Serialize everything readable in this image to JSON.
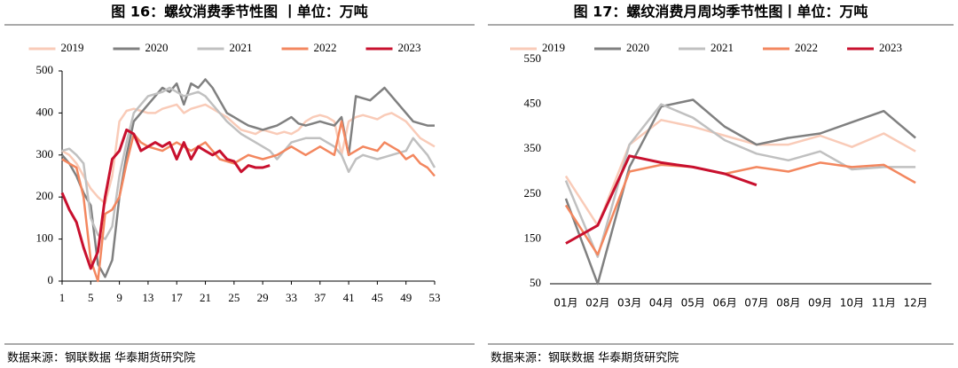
{
  "chart_data": [
    {
      "type": "line",
      "title": "图 16：螺纹消费季节性图 丨单位：万吨",
      "note": "数据来源：钢联数据 华泰期货研究院",
      "x": [
        1,
        2,
        3,
        4,
        5,
        6,
        7,
        8,
        9,
        10,
        11,
        12,
        13,
        14,
        15,
        16,
        17,
        18,
        19,
        20,
        21,
        22,
        23,
        24,
        25,
        26,
        27,
        28,
        29,
        30,
        31,
        32,
        33,
        34,
        35,
        36,
        37,
        38,
        39,
        40,
        41,
        42,
        43,
        44,
        45,
        46,
        47,
        48,
        49,
        50,
        51,
        52,
        53
      ],
      "xlim": [
        1,
        53
      ],
      "xticks": [
        1,
        5,
        9,
        13,
        17,
        21,
        25,
        29,
        33,
        37,
        41,
        45,
        49,
        53
      ],
      "ylim": [
        0,
        500
      ],
      "yticks": [
        0,
        100,
        200,
        300,
        400,
        500
      ],
      "series": [
        {
          "name": "2019",
          "color": "#f9cbb8",
          "values": [
            310,
            300,
            280,
            250,
            220,
            200,
            185,
            250,
            380,
            405,
            410,
            405,
            400,
            400,
            410,
            415,
            420,
            400,
            410,
            415,
            420,
            410,
            400,
            390,
            375,
            360,
            355,
            350,
            360,
            355,
            350,
            355,
            350,
            360,
            380,
            390,
            395,
            390,
            380,
            300,
            380,
            390,
            395,
            390,
            385,
            395,
            400,
            390,
            380,
            360,
            340,
            330,
            320
          ]
        },
        {
          "name": "2020",
          "color": "#808080",
          "values": [
            300,
            280,
            250,
            210,
            180,
            40,
            10,
            50,
            200,
            300,
            380,
            400,
            420,
            440,
            460,
            450,
            470,
            420,
            470,
            460,
            480,
            460,
            430,
            400,
            390,
            380,
            370,
            365,
            360,
            365,
            370,
            380,
            390,
            375,
            370,
            375,
            380,
            375,
            370,
            390,
            300,
            440,
            435,
            430,
            445,
            460,
            440,
            420,
            400,
            380,
            375,
            370,
            370
          ]
        },
        {
          "name": "2021",
          "color": "#c0c0c0",
          "values": [
            310,
            315,
            300,
            280,
            150,
            110,
            100,
            130,
            250,
            330,
            400,
            420,
            440,
            445,
            450,
            460,
            450,
            440,
            445,
            450,
            440,
            420,
            400,
            380,
            365,
            350,
            340,
            330,
            320,
            310,
            290,
            310,
            330,
            335,
            340,
            340,
            340,
            330,
            320,
            300,
            260,
            290,
            300,
            295,
            290,
            295,
            300,
            305,
            310,
            340,
            320,
            300,
            270
          ]
        },
        {
          "name": "2022",
          "color": "#f3875f",
          "values": [
            290,
            280,
            270,
            200,
            50,
            0,
            160,
            170,
            200,
            280,
            350,
            330,
            320,
            315,
            310,
            320,
            330,
            320,
            310,
            320,
            330,
            310,
            290,
            285,
            280,
            290,
            300,
            295,
            290,
            295,
            300,
            310,
            320,
            310,
            300,
            310,
            320,
            310,
            300,
            380,
            300,
            310,
            320,
            315,
            310,
            330,
            320,
            310,
            290,
            300,
            280,
            270,
            250
          ]
        },
        {
          "name": "2023",
          "color": "#c8102e",
          "values": [
            210,
            170,
            140,
            80,
            30,
            70,
            200,
            290,
            310,
            360,
            350,
            310,
            320,
            330,
            320,
            330,
            290,
            330,
            290,
            320,
            310,
            300,
            310,
            290,
            285,
            260,
            275,
            270,
            270,
            275,
            null,
            null,
            null,
            null,
            null,
            null,
            null,
            null,
            null,
            null,
            null,
            null,
            null,
            null,
            null,
            null,
            null,
            null,
            null,
            null,
            null,
            null,
            null
          ]
        }
      ]
    },
    {
      "type": "line",
      "title": "图 17：螺纹消费月周均季节性图丨单位：万吨",
      "note": "数据来源：钢联数据 华泰期货研究院",
      "categories": [
        "01月",
        "02月",
        "03月",
        "04月",
        "05月",
        "06月",
        "07月",
        "08月",
        "09月",
        "10月",
        "11月",
        "12月"
      ],
      "ylim": [
        50,
        550
      ],
      "yticks": [
        50,
        150,
        250,
        350,
        450,
        550
      ],
      "series": [
        {
          "name": "2019",
          "color": "#f9cbb8",
          "values": [
            290,
            180,
            360,
            415,
            400,
            380,
            360,
            360,
            380,
            355,
            385,
            345
          ]
        },
        {
          "name": "2020",
          "color": "#808080",
          "values": [
            240,
            50,
            310,
            445,
            460,
            400,
            360,
            375,
            385,
            410,
            435,
            375
          ]
        },
        {
          "name": "2021",
          "color": "#c0c0c0",
          "values": [
            280,
            110,
            360,
            450,
            420,
            370,
            340,
            325,
            345,
            305,
            310,
            310
          ]
        },
        {
          "name": "2022",
          "color": "#f3875f",
          "values": [
            225,
            115,
            300,
            315,
            310,
            295,
            310,
            300,
            320,
            310,
            315,
            275
          ]
        },
        {
          "name": "2023",
          "color": "#c8102e",
          "values": [
            140,
            180,
            335,
            320,
            310,
            295,
            270,
            null,
            null,
            null,
            null,
            null
          ]
        }
      ]
    }
  ]
}
